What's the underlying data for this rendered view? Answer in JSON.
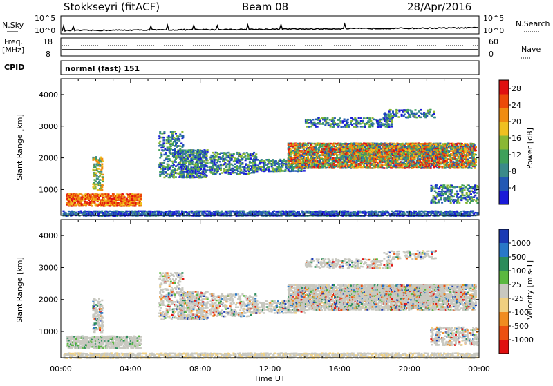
{
  "header": {
    "station": "Stokkseyri (fitACF)",
    "beam": "Beam 08",
    "date": "28/Apr/2016"
  },
  "panels": {
    "nsky": {
      "label": "N.Sky",
      "ticks": [
        "10^5",
        "10^0"
      ],
      "right_ticks": [
        "10^5",
        "10^0"
      ],
      "right_label": "N.Search"
    },
    "freq": {
      "label_line1": "Freq.",
      "label_line2": "[MHz]",
      "ticks": [
        "18",
        "8"
      ],
      "right_ticks": [
        "60",
        "0"
      ],
      "right_label": "Nave"
    },
    "cpid": {
      "label": "CPID",
      "value": "normal (fast) 151"
    }
  },
  "chart_data": [
    {
      "type": "heatmap",
      "title": "",
      "xlabel": "",
      "ylabel": "Slant Range [km]",
      "y_ticks": [
        "1000",
        "2000",
        "3000",
        "4000"
      ],
      "ylim": [
        180,
        4500
      ],
      "colorbar": {
        "label": "Power [dB]",
        "ticks": [
          "4",
          "8",
          "12",
          "16",
          "20",
          "24",
          "28"
        ],
        "range": [
          0,
          30
        ],
        "colors": [
          "#1a1ad8",
          "#2258b4",
          "#3a8a8a",
          "#3fa05a",
          "#8ab834",
          "#f0c020",
          "#f08c10",
          "#ec4a08",
          "#e01010"
        ]
      }
    },
    {
      "type": "heatmap",
      "title": "",
      "xlabel": "Time UT",
      "ylabel": "Slant Range [km]",
      "y_ticks": [
        "1000",
        "2000",
        "3000",
        "4000"
      ],
      "ylim": [
        180,
        4500
      ],
      "x_ticks": [
        "00:00",
        "04:00",
        "08:00",
        "12:00",
        "16:00",
        "20:00",
        "00:00"
      ],
      "xlim": [
        0,
        24
      ],
      "colorbar": {
        "label": "Velocity [m s-1]",
        "ticks": [
          "1000",
          "500",
          "100",
          "25",
          "-25",
          "-100",
          "-500",
          "-1000"
        ],
        "colors": [
          "#1a3ab4",
          "#2878c8",
          "#2a8c5a",
          "#5ab840",
          "#c8c8c0",
          "#f0d080",
          "#f08c20",
          "#ec5010",
          "#e01010"
        ]
      }
    }
  ]
}
